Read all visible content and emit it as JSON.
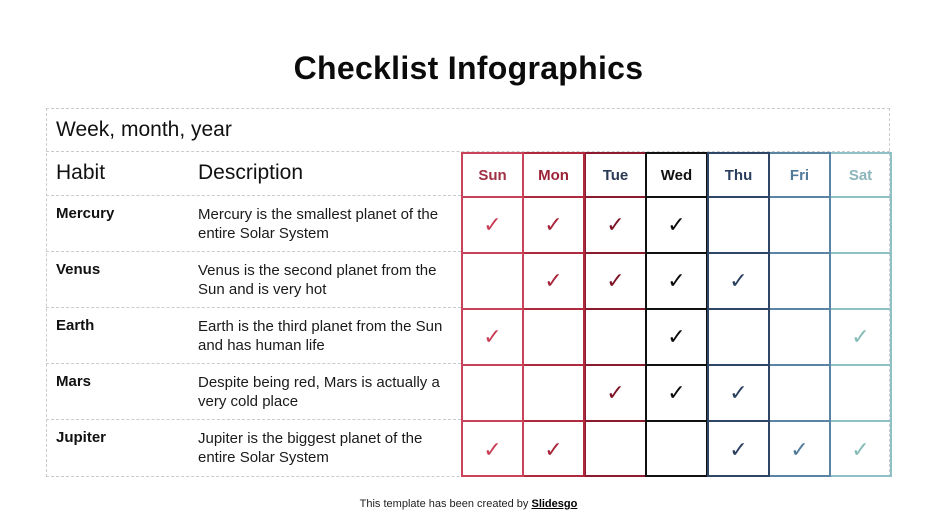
{
  "title": "Checklist Infographics",
  "period_label": "Week, month, year",
  "columns": {
    "habit": "Habit",
    "description": "Description"
  },
  "days": [
    {
      "label": "Sun",
      "border": "#c9445a",
      "text": "#a23044",
      "check": "#c84058"
    },
    {
      "label": "Mon",
      "border": "#b02a3e",
      "text": "#9c2236",
      "check": "#a8263a"
    },
    {
      "label": "Tue",
      "border": "#8b1a2e",
      "text": "#2a3a55",
      "check": "#7a1426"
    },
    {
      "label": "Wed",
      "border": "#111111",
      "text": "#111111",
      "check": "#0a0a0a"
    },
    {
      "label": "Thu",
      "border": "#2f4566",
      "text": "#2a3f5f",
      "check": "#2a3f5f"
    },
    {
      "label": "Fri",
      "border": "#5a84a3",
      "text": "#4f7a9a",
      "check": "#4f7a9a"
    },
    {
      "label": "Sat",
      "border": "#8fc0c5",
      "text": "#8bb5bb",
      "check": "#86bcb8"
    }
  ],
  "check_symbol": "✓",
  "rows": [
    {
      "habit": "Mercury",
      "description": "Mercury is the smallest planet of the entire Solar System",
      "checks": [
        true,
        true,
        true,
        true,
        false,
        false,
        false
      ]
    },
    {
      "habit": "Venus",
      "description": "Venus is the second planet from the Sun and is very hot",
      "checks": [
        false,
        true,
        true,
        true,
        true,
        false,
        false
      ]
    },
    {
      "habit": "Earth",
      "description": "Earth is the third planet from the Sun and has human life",
      "checks": [
        true,
        false,
        false,
        true,
        false,
        false,
        true
      ]
    },
    {
      "habit": "Mars",
      "description": "Despite being red, Mars is actually a very cold place",
      "checks": [
        false,
        false,
        true,
        true,
        true,
        false,
        false
      ]
    },
    {
      "habit": "Jupiter",
      "description": "Jupiter is the biggest planet of the entire Solar System",
      "checks": [
        true,
        true,
        false,
        false,
        true,
        true,
        true
      ]
    }
  ],
  "footer": {
    "text": "This template has been created by ",
    "brand": "Slidesgo"
  }
}
